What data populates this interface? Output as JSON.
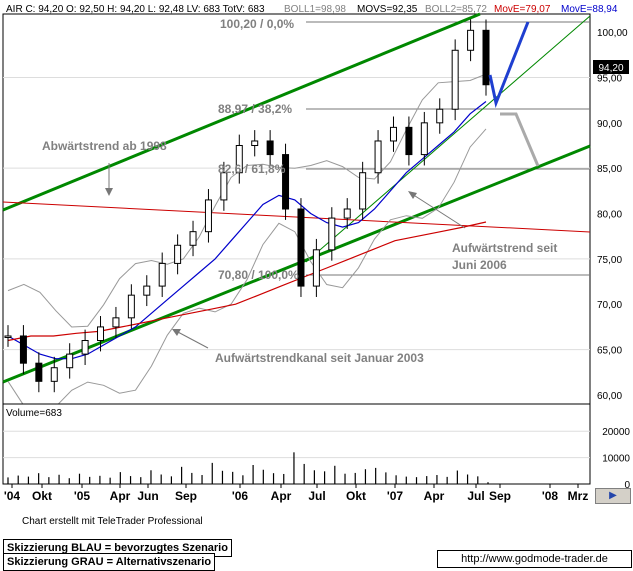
{
  "header": {
    "symbol": "AIR",
    "quote_text": "AIR C: 94,20 O: 92,50 H: 94,20 L: 92,48 LV: 683 TotV: 683",
    "boll1": "BOLL1=98,98",
    "movs": "MOVS=92,35",
    "boll2": "BOLL2=85,72",
    "move1": "MovE=79,07",
    "move2": "MovE=88,94",
    "colors": {
      "boll": "#999999",
      "movs": "#000000",
      "move1": "#cc0000",
      "move2": "#0000cc"
    }
  },
  "price_label": "94,20",
  "annotations": {
    "fib_100": "100,20 / 0,0%",
    "fib_382": "88,97 / 38,2%",
    "fib_618": "82,6 / 61,8%",
    "fib_0": "70,80 / 100,0%",
    "downtrend": "Abwärtstrend ab 1998",
    "uptrend_line1": "Aufwärtstrend seit",
    "uptrend_line2": "Juni 2006",
    "channel": "Aufwärtstrendkanal seit Januar 2003"
  },
  "volume_label": "Volume=683",
  "credit": "Chart erstellt mit TeleTrader Professional",
  "legend": {
    "blue": "Skizzierung BLAU = bevorzugtes Szenario",
    "gray": "Skizzierung GRAU = Alternativszenario"
  },
  "url": "http://www.godmode-trader.de",
  "nav_icon": "arrow-icon",
  "chart_data": [
    {
      "type": "candlestick",
      "title": "",
      "y_ticks": [
        "60,00",
        "65,00",
        "70,00",
        "75,00",
        "80,00",
        "85,00",
        "90,00",
        "95,00",
        "100,00"
      ],
      "ylim": [
        59,
        102
      ],
      "x_ticks": [
        "'04",
        "Okt",
        "'05",
        "Apr",
        "Jun",
        "Sep",
        "'06",
        "Apr",
        "Jul",
        "Okt",
        "'07",
        "Apr",
        "Jul",
        "Sep",
        "'08",
        "Mrz"
      ],
      "grid": true,
      "series": [
        {
          "name": "Close",
          "values": [
            66.5,
            63.5,
            61.5,
            63.0,
            64.5,
            66.0,
            67.5,
            68.5,
            71.0,
            72.0,
            74.5,
            76.5,
            78.0,
            81.5,
            84.5,
            87.5,
            88.0,
            86.5,
            80.5,
            72.0,
            76.0,
            79.5,
            80.5,
            84.5,
            88.0,
            89.5,
            86.5,
            90.0,
            91.5,
            98.0,
            100.2,
            94.2
          ]
        },
        {
          "name": "MOVS",
          "values": [
            66.5,
            65.5,
            64.5,
            64.0,
            64.0,
            64.5,
            65.5,
            66.5,
            67.5,
            69.0,
            70.5,
            72.0,
            73.5,
            75.0,
            77.0,
            79.0,
            81.0,
            82.0,
            81.5,
            80.0,
            79.0,
            78.5,
            79.0,
            80.5,
            82.5,
            84.5,
            86.0,
            87.5,
            89.0,
            91.0,
            92.35
          ]
        },
        {
          "name": "MovE",
          "values": [
            66.0,
            66.5,
            66.5,
            66.8,
            67.0,
            67.5,
            68.0,
            68.5,
            69.0,
            69.5,
            70.0,
            71.0,
            72.0,
            73.0,
            74.0,
            75.0,
            76.0,
            77.0,
            77.5,
            78.0,
            78.5,
            79.07
          ]
        }
      ]
    },
    {
      "type": "bar",
      "title": "",
      "y_ticks": [
        "0",
        "10000",
        "20000"
      ],
      "ylim": [
        0,
        25000
      ],
      "series": [
        {
          "name": "Volume",
          "values": [
            2500,
            3200,
            2800,
            4100,
            2600,
            3500,
            2200,
            3900,
            2700,
            3100,
            2400,
            4500,
            3000,
            2600,
            5200,
            3600,
            2900,
            6500,
            4200,
            3400,
            8000,
            5000,
            4600,
            3300,
            7200,
            5400,
            4100,
            3800,
            12000,
            7600,
            5200,
            4800,
            6900,
            3900,
            4200,
            5600,
            6100,
            4400,
            3300,
            2800,
            2600,
            3000,
            3400,
            2700,
            5100,
            3600,
            2900,
            683
          ]
        }
      ]
    }
  ]
}
